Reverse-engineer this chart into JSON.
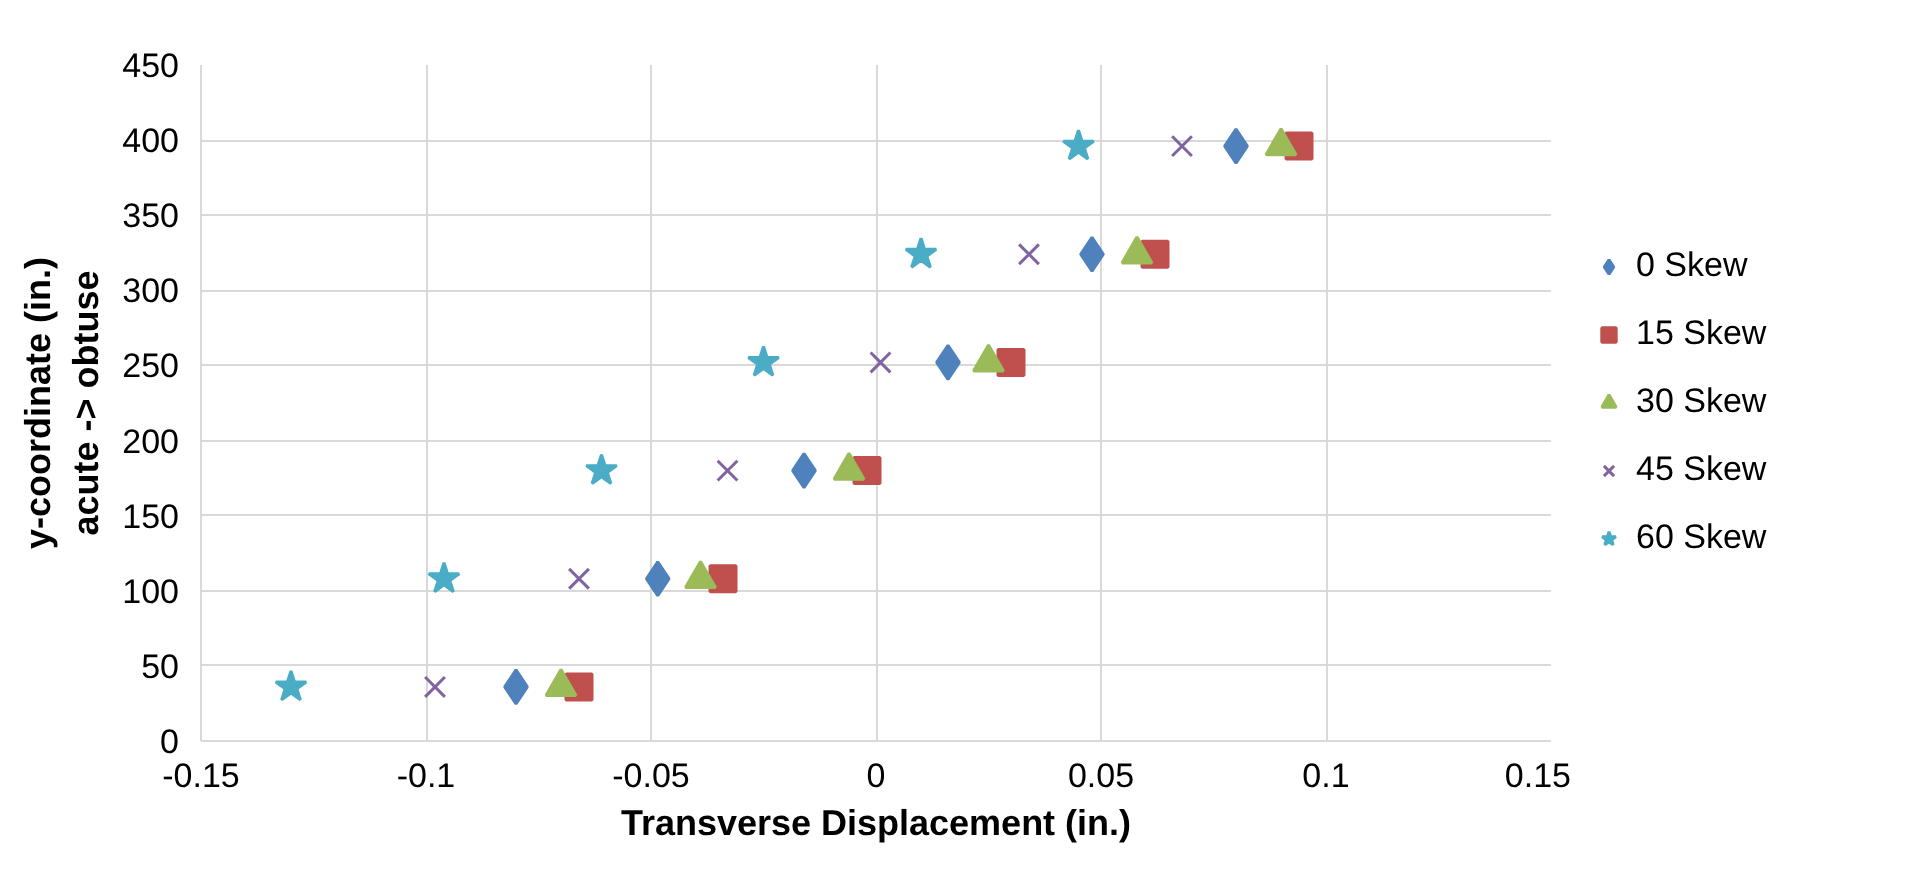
{
  "chart_data": {
    "type": "scatter",
    "xlabel": "Transverse Displacement (in.)",
    "ylabel": "y-coordinate (in.)\nacute -> obtuse",
    "xlim": [
      -0.15,
      0.15
    ],
    "xticks": [
      -0.15,
      -0.1,
      -0.05,
      0,
      0.05,
      0.1,
      0.15
    ],
    "ylim": [
      0,
      450
    ],
    "yticks": [
      0,
      50,
      100,
      150,
      200,
      250,
      300,
      350,
      400,
      450
    ],
    "grid": true,
    "legend": "right",
    "series": [
      {
        "name": "0 Skew",
        "color": "#4f81bd",
        "marker": "diamond",
        "x": [
          -0.08,
          -0.0485,
          -0.016,
          0.016,
          0.048,
          0.08
        ],
        "values": [
          36,
          108,
          180,
          252,
          324,
          396
        ]
      },
      {
        "name": "15 Skew",
        "color": "#c0504d",
        "marker": "square",
        "x": [
          -0.066,
          -0.034,
          -0.002,
          0.03,
          0.062,
          0.094
        ],
        "values": [
          36,
          108,
          180,
          252,
          324,
          396
        ]
      },
      {
        "name": "30 Skew",
        "color": "#9bbb59",
        "marker": "triangle",
        "x": [
          -0.07,
          -0.039,
          -0.006,
          0.025,
          0.058,
          0.09
        ],
        "values": [
          36,
          108,
          180,
          252,
          324,
          396
        ]
      },
      {
        "name": "45 Skew",
        "color": "#8064a2",
        "marker": "cross",
        "x": [
          -0.098,
          -0.066,
          -0.033,
          0.001,
          0.034,
          0.068
        ],
        "values": [
          36,
          108,
          180,
          252,
          324,
          396
        ]
      },
      {
        "name": "60 Skew",
        "color": "#4bacc6",
        "marker": "star",
        "x": [
          -0.13,
          -0.096,
          -0.061,
          -0.025,
          0.01,
          0.045
        ],
        "values": [
          36,
          108,
          180,
          252,
          324,
          396
        ]
      }
    ]
  }
}
